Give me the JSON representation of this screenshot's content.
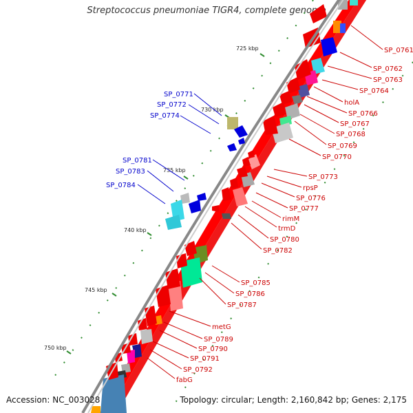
{
  "title": "Streptococcus pneumoniae TIGR4, complete genome",
  "accession_label": "Accession: NC_003028",
  "topology_label": "Topology: circular; Length: 2,160,842 bp; Genes: 2,175",
  "colors": {
    "forward_label": "#cc0000",
    "reverse_label": "#0000cc",
    "ruler_tick": "#2e8b2e",
    "backbone": "#888888"
  },
  "kbp_labels": [
    "725 kbp",
    "730 kbp",
    "735 kbp",
    "740 kbp",
    "745 kbp",
    "750 kbp"
  ],
  "reverse_genes": [
    "SP_0771",
    "SP_0772",
    "SP_0774",
    "SP_0781",
    "SP_0783",
    "SP_0784"
  ],
  "forward_genes": [
    "SP_0761",
    "SP_0762",
    "SP_0763",
    "SP_0764",
    "holA",
    "SP_0766",
    "SP_0767",
    "SP_0768",
    "SP_0769",
    "SP_0770",
    "SP_0773",
    "rpsP",
    "SP_0776",
    "SP_0777",
    "rimM",
    "trmD",
    "SP_0780",
    "SP_0782",
    "SP_0785",
    "SP_0786",
    "SP_0787",
    "metG",
    "SP_0789",
    "SP_0790",
    "SP_0791",
    "SP_0792",
    "fabG"
  ]
}
